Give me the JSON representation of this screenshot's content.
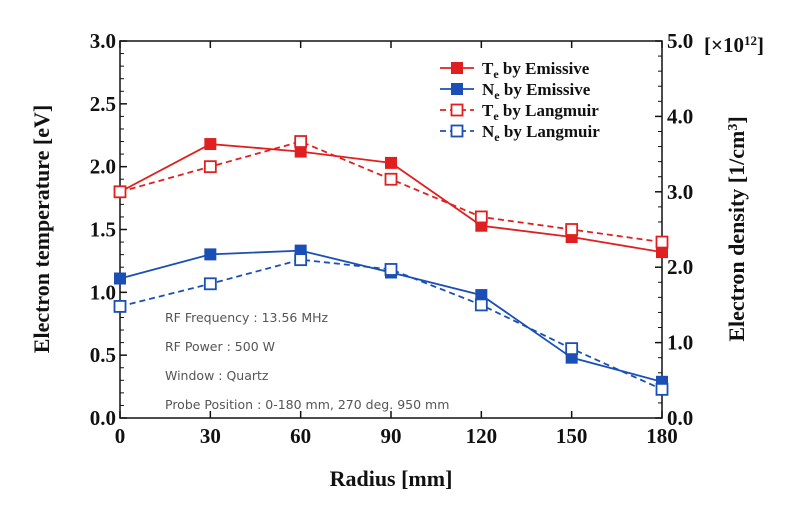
{
  "chart_data": {
    "type": "line",
    "x": [
      0,
      30,
      60,
      90,
      120,
      150,
      180
    ],
    "xlabel": "Radius [mm]",
    "xlim": [
      0,
      180
    ],
    "xticks": [
      "0",
      "30",
      "60",
      "90",
      "120",
      "150",
      "180"
    ],
    "ylabel_left": "Electron temperature [eV]",
    "ylim_left": [
      0.0,
      3.0
    ],
    "yticks_left": [
      "0.0",
      "0.5",
      "1.0",
      "1.5",
      "2.0",
      "2.5",
      "3.0"
    ],
    "ylabel_right": "Electron density [1/cm",
    "ylabel_right_sup": "3",
    "ylabel_right_close": "]",
    "ylim_right": [
      0.0,
      5.0
    ],
    "yticks_right": [
      "0.0",
      "1.0",
      "2.0",
      "3.0",
      "4.0",
      "5.0"
    ],
    "right_multiplier": {
      "prefix": "[×10",
      "exp": "12",
      "suffix": "]"
    },
    "grid": false,
    "legend_position": "top-right",
    "series": [
      {
        "name": "Te by Emissive",
        "label_main": "T",
        "label_sub": "e",
        "label_rest": " by Emissive",
        "axis": "left",
        "color": "#e02020",
        "dash": "solid",
        "marker": "filled-square",
        "values": [
          1.8,
          2.18,
          2.12,
          2.03,
          1.53,
          1.44,
          1.32
        ]
      },
      {
        "name": "Ne by Emissive",
        "label_main": "N",
        "label_sub": "e",
        "label_rest": " by Emissive",
        "axis": "right",
        "color": "#1a4fb5",
        "dash": "solid",
        "marker": "filled-square",
        "values": [
          1.85,
          2.17,
          2.22,
          1.93,
          1.63,
          0.8,
          0.48
        ]
      },
      {
        "name": "Te by Langmuir",
        "label_main": "T",
        "label_sub": "e",
        "label_rest": " by Langmuir",
        "axis": "left",
        "color": "#e02020",
        "dash": "dashed",
        "marker": "open-square",
        "values": [
          1.8,
          2.0,
          2.2,
          1.9,
          1.6,
          1.5,
          1.4
        ]
      },
      {
        "name": "Ne by Langmuir",
        "label_main": "N",
        "label_sub": "e",
        "label_rest": " by Langmuir",
        "axis": "right",
        "color": "#1a4fb5",
        "dash": "dashed",
        "marker": "open-square",
        "values": [
          1.48,
          1.78,
          2.1,
          1.97,
          1.5,
          0.92,
          0.38
        ]
      }
    ],
    "annotations": [
      "RF Frequency : 13.56 MHz",
      "RF Power : 500 W",
      "Window : Quartz",
      "Probe Position : 0-180 mm, 270 deg. 950 mm"
    ]
  }
}
